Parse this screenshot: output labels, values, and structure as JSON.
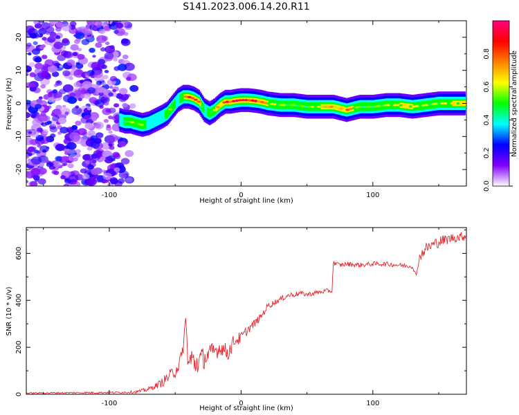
{
  "title": "S141.2023.006.14.20.R11",
  "chart_data": [
    {
      "type": "heatmap",
      "xlabel": "Height of straight line (km)",
      "ylabel": "Frequency (Hz)",
      "xlim": [
        -163,
        171
      ],
      "ylim": [
        -25,
        25
      ],
      "xticks": [
        -100,
        0,
        100
      ],
      "yticks": [
        -20,
        -10,
        0,
        10,
        20
      ],
      "colorbar": {
        "label": "Normalized spectral amplitude",
        "range": [
          0,
          1
        ],
        "ticks": [
          "0.0",
          "0.2",
          "0.4",
          "0.6",
          "0.8"
        ],
        "colors": [
          "#ffffff",
          "#8000ff",
          "#0000ff",
          "#00ffff",
          "#00ff00",
          "#ffff00",
          "#ff8000",
          "#ff0000",
          "#ff0080"
        ]
      },
      "noise_region_x": [
        -163,
        -82
      ],
      "ridge": {
        "x": [
          -92,
          -88,
          -84,
          -80,
          -75,
          -70,
          -65,
          -60,
          -56,
          -52,
          -48,
          -44,
          -40,
          -36,
          -32,
          -28,
          -24,
          -20,
          -16,
          -12,
          -8,
          -4,
          0,
          5,
          10,
          15,
          20,
          30,
          40,
          50,
          60,
          70,
          75,
          80,
          85,
          90,
          100,
          110,
          120,
          130,
          140,
          150,
          160,
          170
        ],
        "y": [
          -5,
          -5.5,
          -5.5,
          -6,
          -6.5,
          -6,
          -5,
          -4,
          -3,
          -1,
          1,
          2,
          2,
          1.5,
          0.5,
          -2,
          -3,
          -2,
          -0.5,
          0.5,
          0.5,
          0.8,
          1,
          1,
          0.8,
          0.5,
          0,
          -0.5,
          -0.5,
          -1,
          -1,
          -1,
          -1.5,
          -2,
          -1.5,
          -1,
          -1,
          -0.5,
          -0.5,
          -1,
          -0.5,
          0,
          0,
          0
        ],
        "amp": [
          0.35,
          0.5,
          0.55,
          0.6,
          0.5,
          0.4,
          0.35,
          0.4,
          0.5,
          0.5,
          0.4,
          0.6,
          0.85,
          0.9,
          0.7,
          0.4,
          0.5,
          0.6,
          0.7,
          0.8,
          0.85,
          0.9,
          0.95,
          0.9,
          0.85,
          0.8,
          0.6,
          0.55,
          0.5,
          0.5,
          0.6,
          0.7,
          0.6,
          0.8,
          0.6,
          0.5,
          0.5,
          0.55,
          0.6,
          0.6,
          0.55,
          0.55,
          0.6,
          0.6
        ]
      }
    },
    {
      "type": "line",
      "xlabel": "Height of straight line (km)",
      "ylabel": "SNR (10 * v/v)",
      "xlim": [
        -163,
        171
      ],
      "ylim": [
        0,
        710
      ],
      "xticks": [
        -100,
        0,
        100
      ],
      "yticks": [
        0,
        200,
        400,
        600
      ],
      "series": [
        {
          "color": "#e8242a",
          "x": [
            -163,
            -140,
            -110,
            -90,
            -80,
            -75,
            -70,
            -65,
            -60,
            -55,
            -50,
            -45,
            -42,
            -40,
            -38,
            -35,
            -30,
            -25,
            -20,
            -15,
            -10,
            -5,
            0,
            5,
            10,
            15,
            20,
            25,
            30,
            35,
            40,
            45,
            50,
            55,
            60,
            65,
            69,
            70,
            75,
            80,
            90,
            100,
            110,
            120,
            130,
            133,
            135,
            140,
            150,
            160,
            171
          ],
          "y": [
            5,
            6,
            7,
            8,
            10,
            15,
            22,
            35,
            50,
            75,
            100,
            150,
            320,
            120,
            150,
            130,
            150,
            165,
            185,
            200,
            175,
            230,
            240,
            275,
            300,
            330,
            375,
            390,
            405,
            420,
            425,
            430,
            425,
            430,
            435,
            440,
            440,
            560,
            550,
            555,
            550,
            555,
            555,
            550,
            545,
            505,
            580,
            620,
            650,
            665,
            675
          ],
          "noise": [
            3,
            3,
            4,
            4,
            6,
            8,
            10,
            12,
            20,
            25,
            30,
            40,
            20,
            60,
            60,
            60,
            50,
            45,
            40,
            35,
            35,
            30,
            25,
            20,
            18,
            15,
            15,
            12,
            12,
            12,
            12,
            10,
            10,
            10,
            10,
            10,
            10,
            10,
            10,
            10,
            10,
            10,
            10,
            10,
            10,
            5,
            20,
            25,
            25,
            20,
            20
          ]
        }
      ]
    }
  ]
}
